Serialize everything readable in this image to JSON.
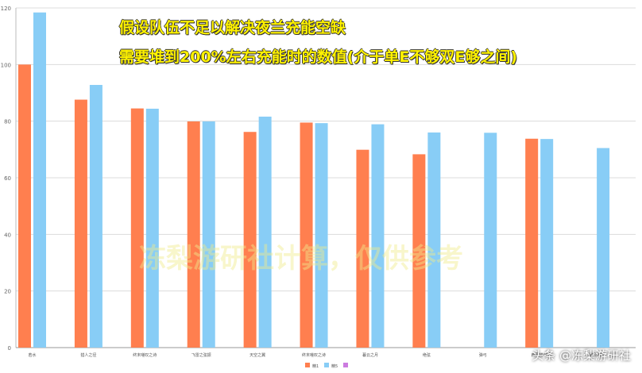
{
  "headline": {
    "line1": "假设队伍不足以解决夜兰充能空缺",
    "line2": "需要堆到200%左右充能时的数值(介于单E不够双E够之间)"
  },
  "watermark": "冻梨游研社计算，仅供参考",
  "credit": "头条 @冻梨游研社",
  "chart_data": {
    "type": "bar",
    "categories": [
      "若水",
      "猎人之径",
      "终末嗟叹之诗",
      "飞雷之弦振",
      "天空之翼",
      "终末嗟叹之诗",
      "暮云之月",
      "绝弦",
      "弹弓",
      "西风猎弓",
      "鸦羽弓"
    ],
    "ylim": [
      0,
      120
    ],
    "yticks": [
      0,
      20,
      40,
      60,
      80,
      100,
      120
    ],
    "series": [
      {
        "name": "精1",
        "color": "#ff7f4f",
        "values": [
          100,
          87.6,
          84.5,
          79.9,
          76.2,
          79.5,
          69.9,
          68.3,
          null,
          73.8,
          null
        ]
      },
      {
        "name": "精5",
        "color": "#88cdf6",
        "values": [
          118.4,
          92.8,
          84.4,
          79.9,
          81.6,
          79.3,
          78.9,
          76.0,
          75.9,
          73.7,
          70.5
        ]
      }
    ],
    "legend_extra": {
      "color": "#cc7be0"
    },
    "legend_position": "bottom",
    "grid": true
  }
}
